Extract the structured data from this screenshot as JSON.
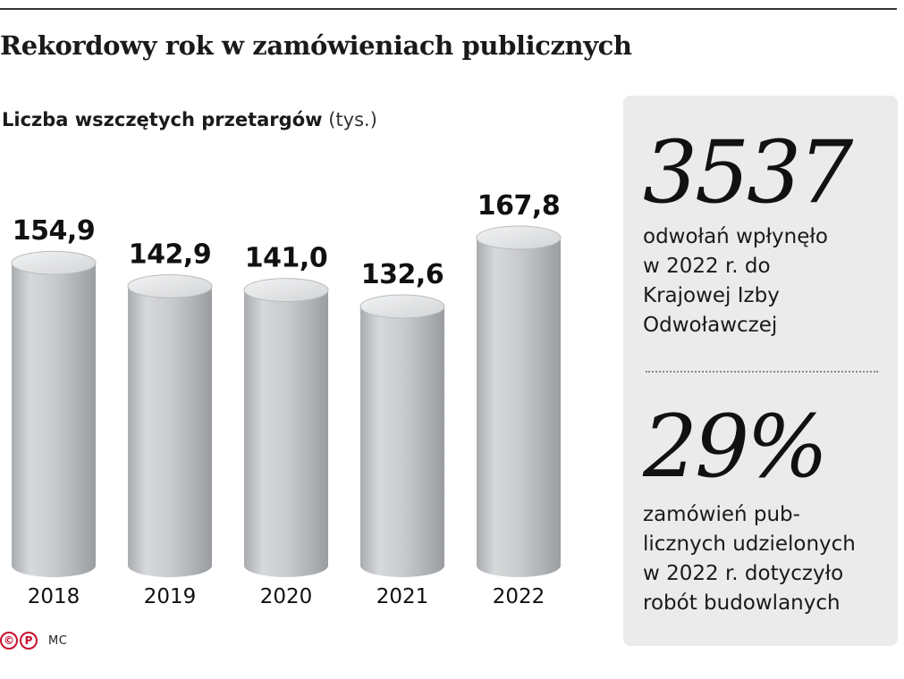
{
  "header": {
    "title": "Rekordowy rok w zamówieniach publicznych",
    "subtitle": "Liczba wszczętych przetargów",
    "unit": "(tys.)"
  },
  "chart_data": {
    "type": "bar",
    "categories": [
      "2018",
      "2019",
      "2020",
      "2021",
      "2022"
    ],
    "values": [
      154.9,
      142.9,
      141.0,
      132.6,
      167.8
    ],
    "value_labels": [
      "154,9",
      "142,9",
      "141,0",
      "132,6",
      "167,8"
    ],
    "title": "Liczba wszczętych przetargów",
    "unit": "(tys.)",
    "grid": false,
    "legend": "none",
    "bar_style": "cylinder",
    "bar_color": "#c4c6c8"
  },
  "panel": {
    "stats": [
      {
        "value": "3537",
        "text": "odwołań wpłynęło\nw 2022 r. do\nKrajowej Izby\nOdwoławczej"
      },
      {
        "value": "29%",
        "text": "zamówień pub-\nlicznych udzielonych\nw 2022 r. dotyczyło\nrobót budowlanych"
      }
    ]
  },
  "footer": {
    "logo_marks": [
      "©",
      "P"
    ],
    "author": "MC"
  }
}
